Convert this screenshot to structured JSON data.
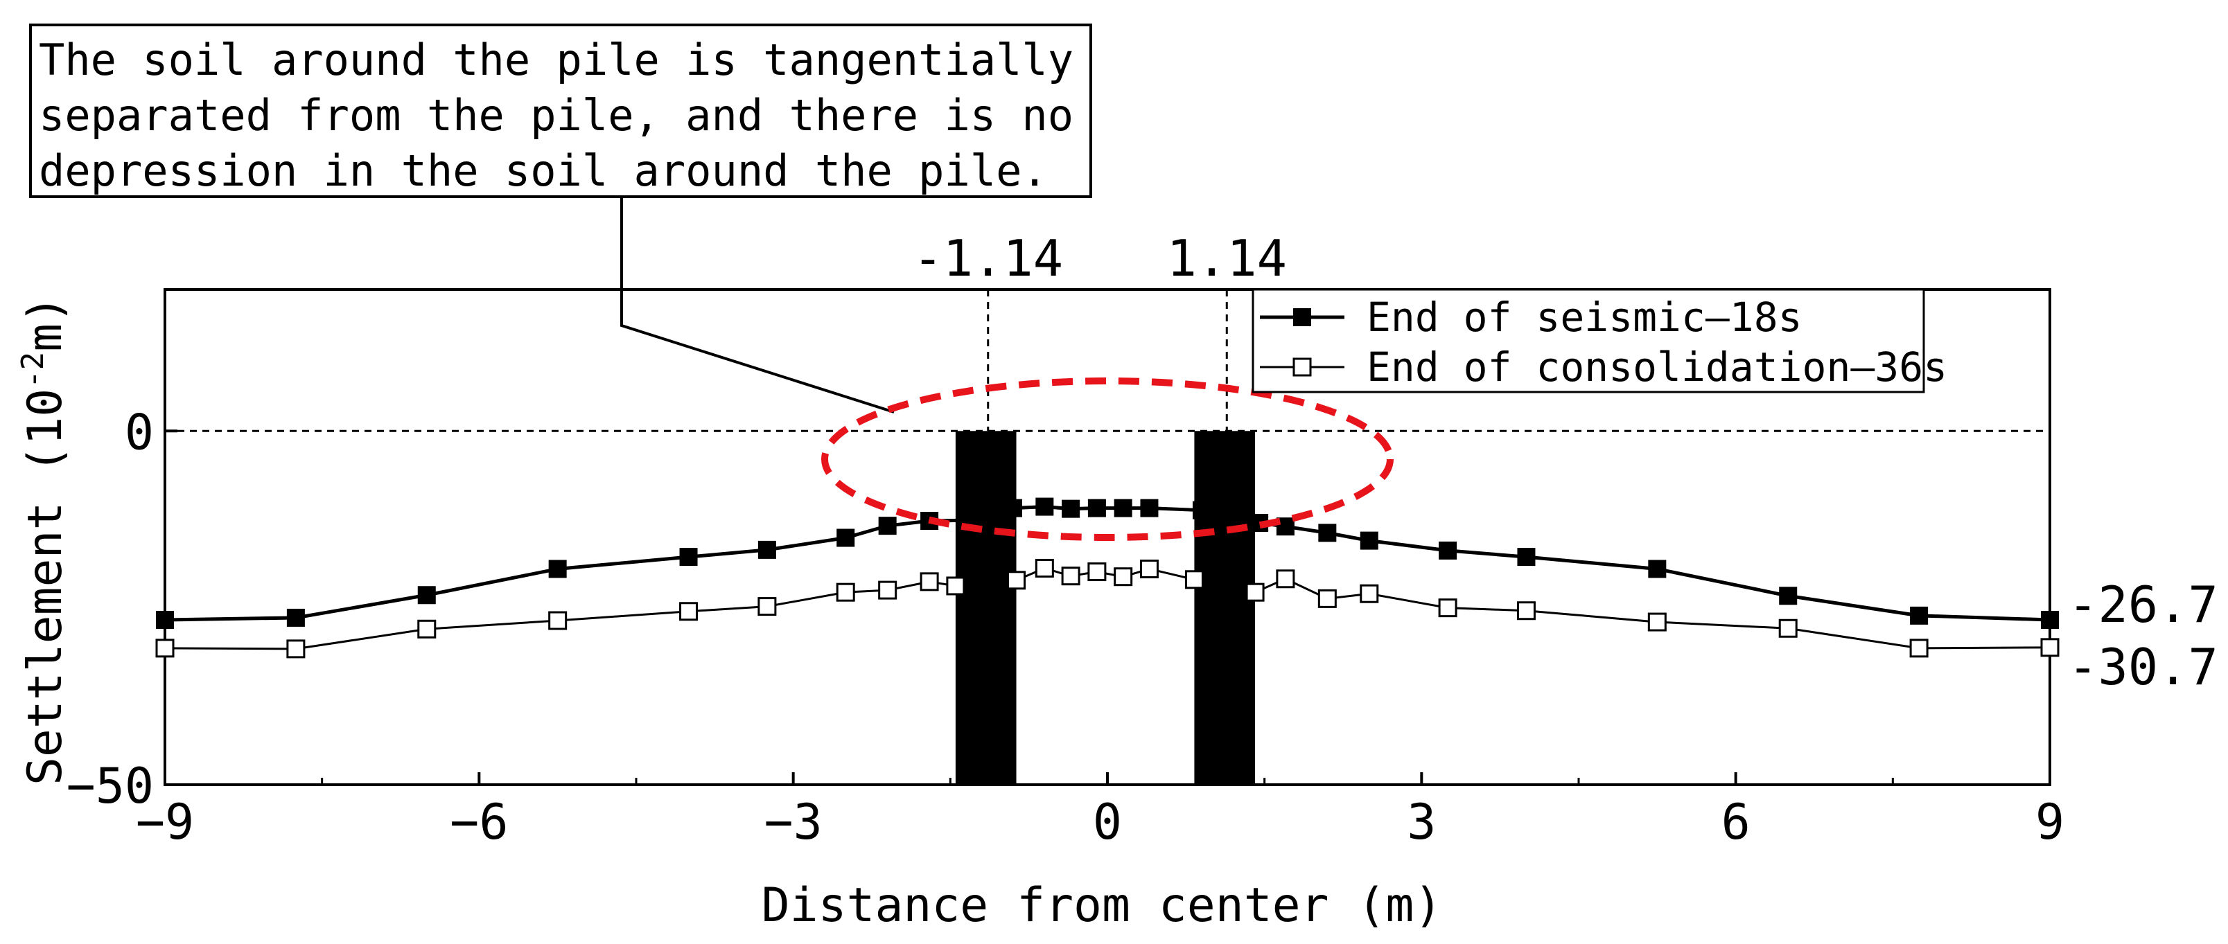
{
  "chart_data": {
    "type": "line",
    "xlabel": "Distance from center (m)",
    "ylabel_main": "Settlement (10",
    "ylabel_sup": "-2",
    "ylabel_end": "m)",
    "xlim": [
      -9,
      9
    ],
    "ylim": [
      -50,
      20
    ],
    "xticks": [
      -9,
      -6,
      -3,
      0,
      3,
      6,
      9
    ],
    "xtick_labels": [
      "−9",
      "−6",
      "−3",
      "0",
      "3",
      "6",
      "9"
    ],
    "yticks": [
      0,
      -50
    ],
    "ytick_labels": [
      "0",
      "−50"
    ],
    "reference_line_y": 0,
    "pile_markers": [
      {
        "x": -1.14,
        "label": "-1.14"
      },
      {
        "x": 1.14,
        "label": "1.14"
      }
    ],
    "piles": [
      {
        "x_from": -1.45,
        "x_to": -0.87,
        "y_top": 0,
        "y_bottom": -50
      },
      {
        "x_from": 0.83,
        "x_to": 1.41,
        "y_top": 0,
        "y_bottom": -50
      }
    ],
    "end_value_labels": [
      "-26.7",
      "-30.7"
    ],
    "annotation_lines": [
      "The soil around the pile is tangentially",
      "separated from the pile, and there is no",
      "depression in the soil around the pile."
    ],
    "highlight_color": "#e8141b",
    "legend_position": "top-right",
    "series": [
      {
        "name": "End of seismic‒18s",
        "marker": "filled-square",
        "color": "#000000",
        "x": [
          -9,
          -7.75,
          -6.5,
          -5.25,
          -4,
          -3.25,
          -2.5,
          -2.1,
          -1.7,
          -1.2,
          -0.9,
          -0.6,
          -0.35,
          -0.1,
          0.15,
          0.4,
          0.9,
          1.2,
          1.45,
          1.7,
          2.1,
          2.5,
          3.25,
          4,
          5.25,
          6.5,
          7.75,
          9
        ],
        "y": [
          -26.7,
          -26.4,
          -23.2,
          -19.5,
          -17.8,
          -16.8,
          -15.1,
          -13.4,
          -12.7,
          -12.6,
          -10.9,
          -10.7,
          -11.0,
          -10.9,
          -10.9,
          -10.9,
          -11.2,
          -11.8,
          -13.0,
          -13.5,
          -14.4,
          -15.5,
          -16.9,
          -17.8,
          -19.5,
          -23.3,
          -26.1,
          -26.7
        ]
      },
      {
        "name": "End of consolidation‒36s",
        "marker": "open-square",
        "color": "#000000",
        "x": [
          -9,
          -7.75,
          -6.5,
          -5.25,
          -4,
          -3.25,
          -2.5,
          -2.1,
          -1.7,
          -1.45,
          -0.87,
          -0.6,
          -0.35,
          -0.1,
          0.15,
          0.4,
          0.83,
          1.41,
          1.7,
          2.1,
          2.5,
          3.25,
          4,
          5.25,
          6.5,
          7.75,
          9
        ],
        "y": [
          -30.7,
          -30.8,
          -28.0,
          -26.8,
          -25.5,
          -24.8,
          -22.8,
          -22.5,
          -21.3,
          -21.9,
          -21.1,
          -19.4,
          -20.5,
          -19.9,
          -20.6,
          -19.5,
          -21.0,
          -22.8,
          -20.9,
          -23.7,
          -23.0,
          -25.0,
          -25.4,
          -27.0,
          -27.9,
          -30.7,
          -30.6
        ]
      }
    ]
  }
}
